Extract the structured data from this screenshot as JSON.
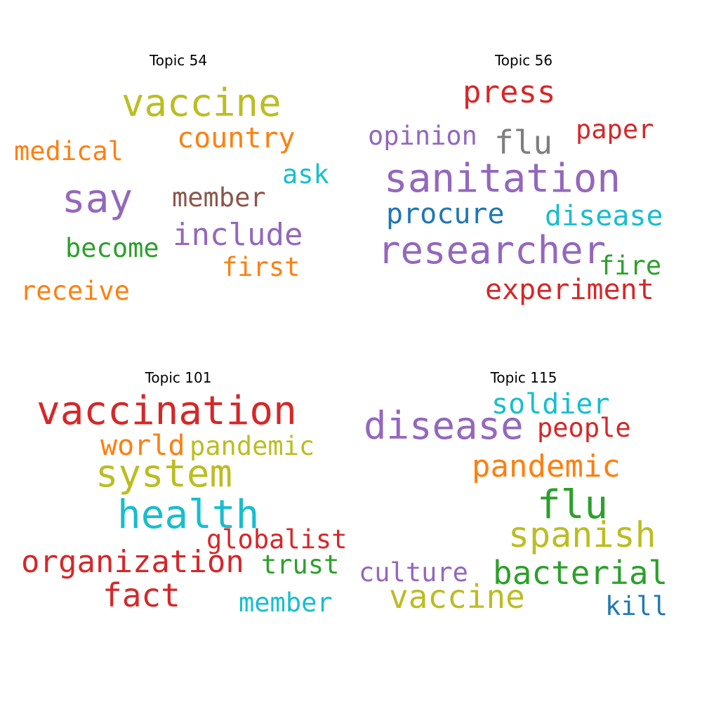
{
  "topics": [
    {
      "title": "Topic 54",
      "words": [
        {
          "text": "vaccine",
          "color": "#bcbd22"
        },
        {
          "text": "country",
          "color": "#ff7f0e"
        },
        {
          "text": "medical",
          "color": "#ff7f0e"
        },
        {
          "text": "ask",
          "color": "#17becf"
        },
        {
          "text": "say",
          "color": "#9467bd"
        },
        {
          "text": "member",
          "color": "#8c564b"
        },
        {
          "text": "include",
          "color": "#9467bd"
        },
        {
          "text": "become",
          "color": "#2ca02c"
        },
        {
          "text": "first",
          "color": "#ff7f0e"
        },
        {
          "text": "receive",
          "color": "#ff7f0e"
        }
      ]
    },
    {
      "title": "Topic 56",
      "words": [
        {
          "text": "press",
          "color": "#d62728"
        },
        {
          "text": "opinion",
          "color": "#9467bd"
        },
        {
          "text": "flu",
          "color": "#7f7f7f"
        },
        {
          "text": "paper",
          "color": "#d62728"
        },
        {
          "text": "sanitation",
          "color": "#9467bd"
        },
        {
          "text": "procure",
          "color": "#1f77b4"
        },
        {
          "text": "disease",
          "color": "#17becf"
        },
        {
          "text": "researcher",
          "color": "#9467bd"
        },
        {
          "text": "fire",
          "color": "#2ca02c"
        },
        {
          "text": "experiment",
          "color": "#d62728"
        }
      ]
    },
    {
      "title": "Topic 101",
      "words": [
        {
          "text": "vaccination",
          "color": "#d62728"
        },
        {
          "text": "world",
          "color": "#ff7f0e"
        },
        {
          "text": "pandemic",
          "color": "#bcbd22"
        },
        {
          "text": "system",
          "color": "#bcbd22"
        },
        {
          "text": "health",
          "color": "#17becf"
        },
        {
          "text": "globalist",
          "color": "#d62728"
        },
        {
          "text": "organization",
          "color": "#d62728"
        },
        {
          "text": "trust",
          "color": "#2ca02c"
        },
        {
          "text": "fact",
          "color": "#d62728"
        },
        {
          "text": "member",
          "color": "#17becf"
        }
      ]
    },
    {
      "title": "Topic 115",
      "words": [
        {
          "text": "soldier",
          "color": "#17becf"
        },
        {
          "text": "disease",
          "color": "#9467bd"
        },
        {
          "text": "people",
          "color": "#d62728"
        },
        {
          "text": "pandemic",
          "color": "#ff7f0e"
        },
        {
          "text": "flu",
          "color": "#2ca02c"
        },
        {
          "text": "spanish",
          "color": "#bcbd22"
        },
        {
          "text": "culture",
          "color": "#9467bd"
        },
        {
          "text": "bacterial",
          "color": "#2ca02c"
        },
        {
          "text": "vaccine",
          "color": "#bcbd22"
        },
        {
          "text": "kill",
          "color": "#1f77b4"
        }
      ]
    }
  ]
}
